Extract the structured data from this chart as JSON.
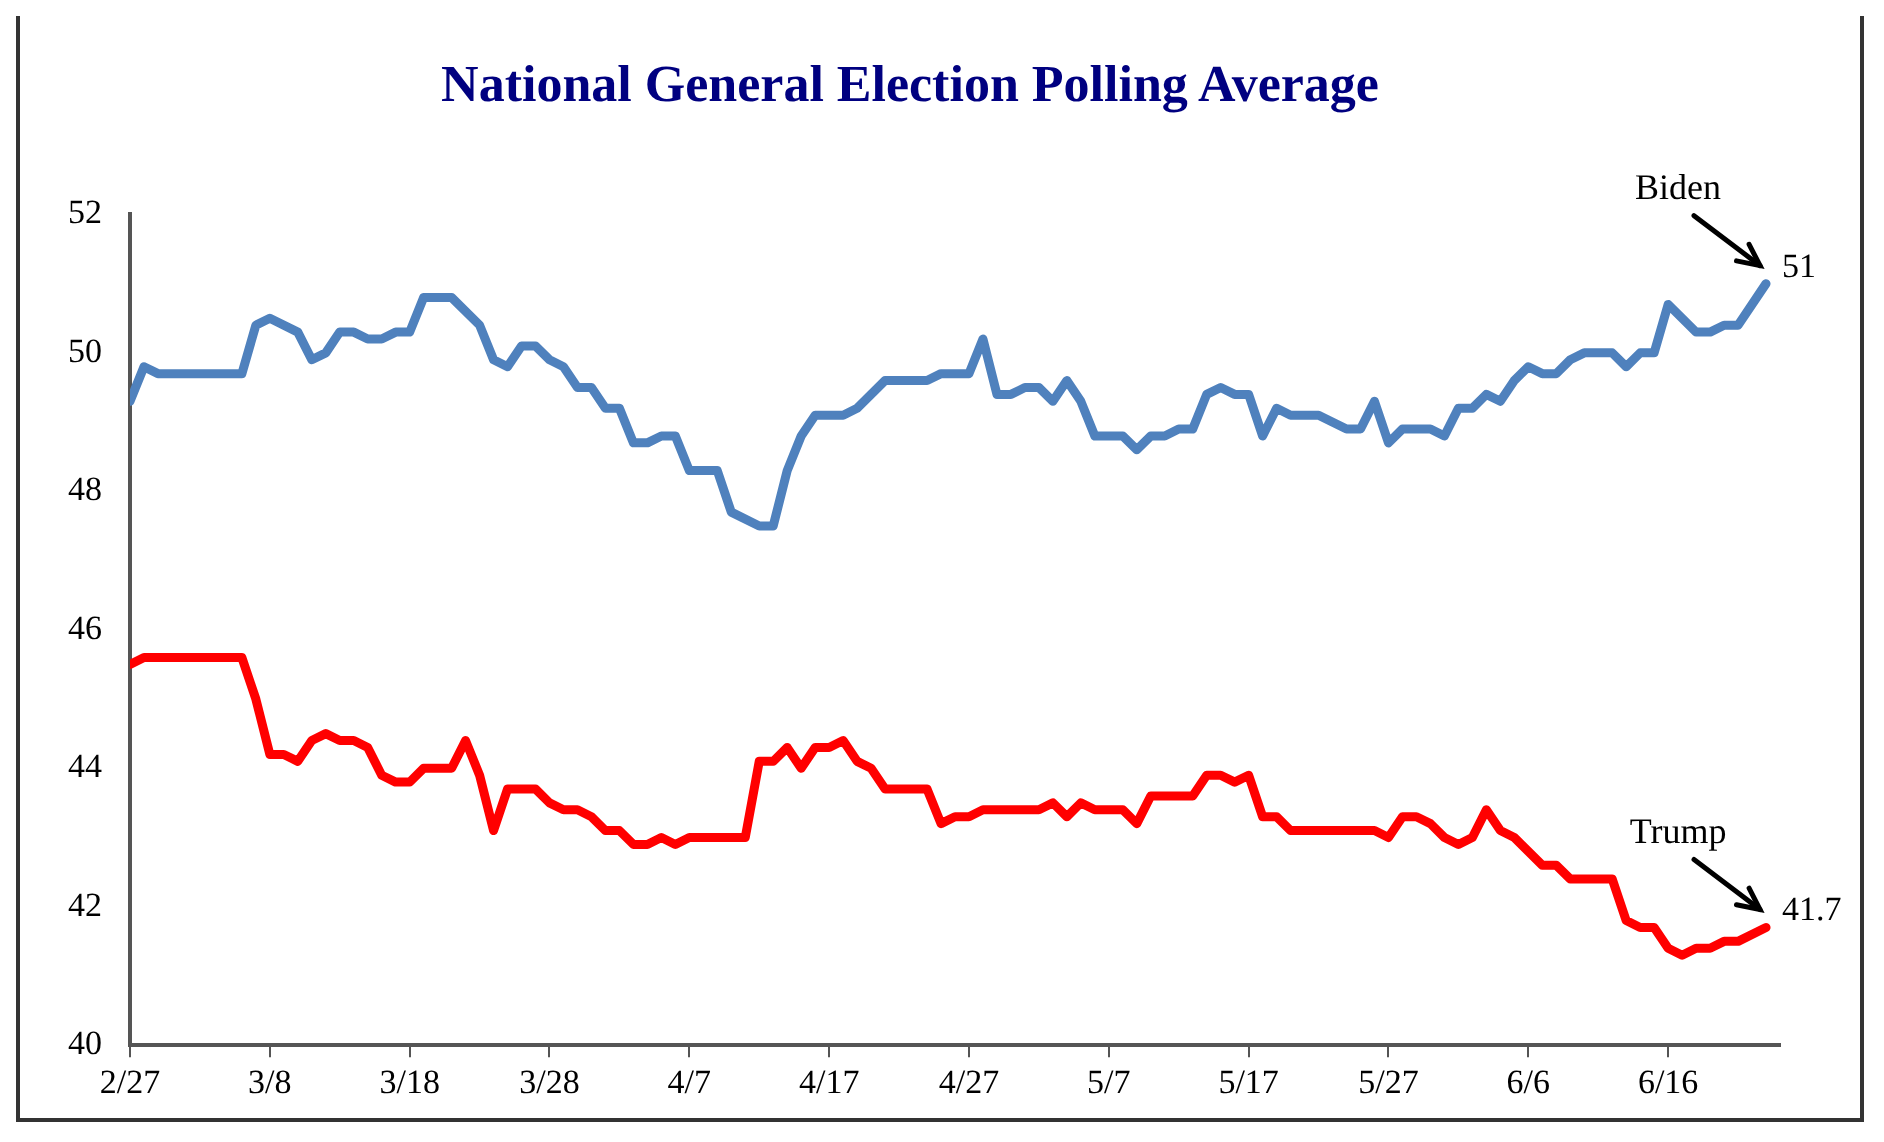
{
  "chart_data": {
    "type": "line",
    "title": "National General Election Polling Average",
    "marker": "none",
    "line_style": "solid",
    "xlim": [
      "--02-27",
      "--06-24"
    ],
    "xticks": [
      {
        "value": "--02-27",
        "label": "2/27"
      },
      {
        "value": "--03-08",
        "label": "3/8"
      },
      {
        "value": "--03-18",
        "label": "3/18"
      },
      {
        "value": "--03-28",
        "label": "3/28"
      },
      {
        "value": "--04-07",
        "label": "4/7"
      },
      {
        "value": "--04-17",
        "label": "4/17"
      },
      {
        "value": "--04-27",
        "label": "4/27"
      },
      {
        "value": "--05-07",
        "label": "5/7"
      },
      {
        "value": "--05-17",
        "label": "5/17"
      },
      {
        "value": "--05-27",
        "label": "5/27"
      },
      {
        "value": "--06-06",
        "label": "6/6"
      },
      {
        "value": "--06-16",
        "label": "6/16"
      }
    ],
    "ylim": [
      40,
      52
    ],
    "yticks": [
      40,
      42,
      44,
      46,
      48,
      50,
      52
    ],
    "series": [
      {
        "name": "Biden",
        "color": "#4f81bd",
        "x": [
          "--02-27",
          "--02-28",
          "--02-29",
          "--03-06",
          "--03-07",
          "--03-08",
          "--03-10",
          "--03-11",
          "--03-12",
          "--03-13",
          "--03-14",
          "--03-15",
          "--03-16",
          "--03-17",
          "--03-18",
          "--03-19",
          "--03-21",
          "--03-23",
          "--03-24",
          "--03-25",
          "--03-26",
          "--03-27",
          "--03-28",
          "--03-29",
          "--03-30",
          "--03-31",
          "--04-01",
          "--04-02",
          "--04-03",
          "--04-04",
          "--04-05",
          "--04-06",
          "--04-07",
          "--04-09",
          "--04-10",
          "--04-12",
          "--04-13",
          "--04-14",
          "--04-15",
          "--04-16",
          "--04-18",
          "--04-19",
          "--04-21",
          "--04-24",
          "--04-25",
          "--04-27",
          "--04-28",
          "--04-29",
          "--04-30",
          "--05-01",
          "--05-02",
          "--05-03",
          "--05-04",
          "--05-05",
          "--05-06",
          "--05-08",
          "--05-09",
          "--05-10",
          "--05-11",
          "--05-12",
          "--05-13",
          "--05-14",
          "--05-15",
          "--05-16",
          "--05-17",
          "--05-18",
          "--05-19",
          "--05-20",
          "--05-22",
          "--05-24",
          "--05-25",
          "--05-26",
          "--05-27",
          "--05-28",
          "--05-30",
          "--05-31",
          "--06-01",
          "--06-02",
          "--06-03",
          "--06-04",
          "--06-05",
          "--06-06",
          "--06-07",
          "--06-08",
          "--06-09",
          "--06-10",
          "--06-12",
          "--06-13",
          "--06-14",
          "--06-15",
          "--06-16",
          "--06-18",
          "--06-19",
          "--06-20",
          "--06-21",
          "--06-23"
        ],
        "values": [
          49.3,
          49.8,
          49.7,
          49.7,
          50.4,
          50.5,
          50.3,
          49.9,
          50.0,
          50.3,
          50.3,
          50.2,
          50.2,
          50.3,
          50.3,
          50.8,
          50.8,
          50.4,
          49.9,
          49.8,
          50.1,
          50.1,
          49.9,
          49.8,
          49.5,
          49.5,
          49.2,
          49.2,
          48.7,
          48.7,
          48.8,
          48.8,
          48.3,
          48.3,
          47.7,
          47.5,
          47.5,
          48.3,
          48.8,
          49.1,
          49.1,
          49.2,
          49.6,
          49.6,
          49.7,
          49.7,
          50.2,
          49.4,
          49.4,
          49.5,
          49.5,
          49.3,
          49.6,
          49.3,
          48.8,
          48.8,
          48.6,
          48.8,
          48.8,
          48.9,
          48.9,
          49.4,
          49.5,
          49.4,
          49.4,
          48.8,
          49.2,
          49.1,
          49.1,
          48.9,
          48.9,
          49.3,
          48.7,
          48.9,
          48.9,
          48.8,
          49.2,
          49.2,
          49.4,
          49.3,
          49.6,
          49.8,
          49.7,
          49.7,
          49.9,
          50.0,
          50.0,
          49.8,
          50.0,
          50.0,
          50.7,
          50.3,
          50.3,
          50.4,
          50.4,
          51.0
        ]
      },
      {
        "name": "Trump",
        "color": "#ff0000",
        "x": [
          "--02-27",
          "--02-28",
          "--03-06",
          "--03-07",
          "--03-08",
          "--03-09",
          "--03-10",
          "--03-11",
          "--03-12",
          "--03-13",
          "--03-14",
          "--03-15",
          "--03-16",
          "--03-17",
          "--03-18",
          "--03-19",
          "--03-21",
          "--03-22",
          "--03-23",
          "--03-24",
          "--03-25",
          "--03-27",
          "--03-28",
          "--03-29",
          "--03-30",
          "--03-31",
          "--04-01",
          "--04-02",
          "--04-03",
          "--04-04",
          "--04-05",
          "--04-06",
          "--04-07",
          "--04-11",
          "--04-12",
          "--04-13",
          "--04-14",
          "--04-15",
          "--04-16",
          "--04-17",
          "--04-18",
          "--04-19",
          "--04-20",
          "--04-21",
          "--04-24",
          "--04-25",
          "--04-26",
          "--04-27",
          "--04-28",
          "--05-02",
          "--05-03",
          "--05-04",
          "--05-05",
          "--05-06",
          "--05-08",
          "--05-09",
          "--05-10",
          "--05-13",
          "--05-14",
          "--05-15",
          "--05-16",
          "--05-17",
          "--05-18",
          "--05-19",
          "--05-20",
          "--05-26",
          "--05-27",
          "--05-28",
          "--05-29",
          "--05-30",
          "--05-31",
          "--06-01",
          "--06-02",
          "--06-03",
          "--06-04",
          "--06-05",
          "--06-07",
          "--06-08",
          "--06-09",
          "--06-12",
          "--06-13",
          "--06-14",
          "--06-15",
          "--06-16",
          "--06-17",
          "--06-18",
          "--06-19",
          "--06-20",
          "--06-21",
          "--06-23"
        ],
        "values": [
          45.5,
          45.6,
          45.6,
          45.0,
          44.2,
          44.2,
          44.1,
          44.4,
          44.5,
          44.4,
          44.4,
          44.3,
          43.9,
          43.8,
          43.8,
          44.0,
          44.0,
          44.4,
          43.9,
          43.1,
          43.7,
          43.7,
          43.5,
          43.4,
          43.4,
          43.3,
          43.1,
          43.1,
          42.9,
          42.9,
          43.0,
          42.9,
          43.0,
          43.0,
          44.1,
          44.1,
          44.3,
          44.0,
          44.3,
          44.3,
          44.4,
          44.1,
          44.0,
          43.7,
          43.7,
          43.2,
          43.3,
          43.3,
          43.4,
          43.4,
          43.5,
          43.3,
          43.5,
          43.4,
          43.4,
          43.2,
          43.6,
          43.6,
          43.9,
          43.9,
          43.8,
          43.9,
          43.3,
          43.3,
          43.1,
          43.1,
          43.0,
          43.3,
          43.3,
          43.2,
          43.0,
          42.9,
          43.0,
          43.4,
          43.1,
          43.0,
          42.6,
          42.6,
          42.4,
          42.4,
          41.8,
          41.7,
          41.7,
          41.4,
          41.3,
          41.4,
          41.4,
          41.5,
          41.5,
          41.7
        ]
      }
    ],
    "annotations": [
      {
        "text": "51",
        "x": "--06-23",
        "y": 51
      },
      {
        "text": "41.7",
        "x": "--06-23",
        "y": 41.7
      }
    ]
  }
}
